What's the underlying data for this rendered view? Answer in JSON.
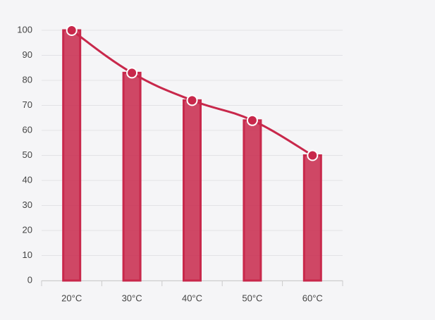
{
  "chart_data": {
    "type": "bar",
    "categories": [
      "20°C",
      "30°C",
      "40°C",
      "50°C",
      "60°C"
    ],
    "values": [
      100,
      83,
      72,
      64,
      50
    ],
    "color": "#c8284b",
    "line_overlay": true,
    "ylim": [
      0,
      100
    ],
    "yticks": [
      0,
      10,
      20,
      30,
      40,
      50,
      60,
      70,
      80,
      90,
      100
    ],
    "grid": true
  }
}
